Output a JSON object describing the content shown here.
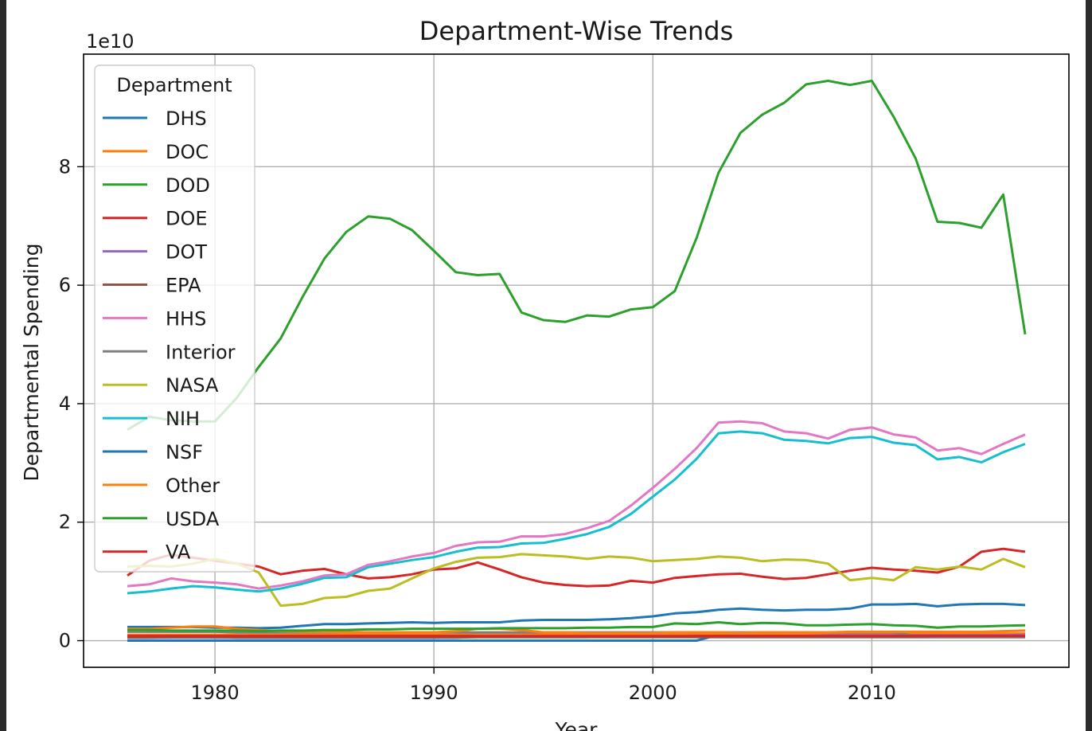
{
  "chart_data": {
    "type": "line",
    "title": "Department-Wise Trends",
    "xlabel": "Year",
    "ylabel": "Departmental Spending",
    "y_offset_label": "1e10",
    "xlim": [
      1974,
      2019
    ],
    "ylim": [
      -0.45,
      9.9
    ],
    "x_ticks": [
      1980,
      1990,
      2000,
      2010
    ],
    "x_tick_labels": [
      "1980",
      "1990",
      "2000",
      "2010"
    ],
    "y_ticks": [
      0,
      2,
      4,
      6,
      8
    ],
    "y_tick_labels": [
      "0",
      "2",
      "4",
      "6",
      "8"
    ],
    "grid": true,
    "legend_title": "Department",
    "legend_position": "upper-left",
    "x": [
      1976,
      1977,
      1978,
      1979,
      1980,
      1981,
      1982,
      1983,
      1984,
      1985,
      1986,
      1987,
      1988,
      1989,
      1990,
      1991,
      1992,
      1993,
      1994,
      1995,
      1996,
      1997,
      1998,
      1999,
      2000,
      2001,
      2002,
      2003,
      2004,
      2005,
      2006,
      2007,
      2008,
      2009,
      2010,
      2011,
      2012,
      2013,
      2014,
      2015,
      2016,
      2017
    ],
    "series": [
      {
        "name": "DHS",
        "color": "#1f77b4",
        "values": [
          0,
          0,
          0,
          0,
          0,
          0,
          0,
          0,
          0,
          0,
          0,
          0,
          0,
          0,
          0,
          0,
          0,
          0,
          0,
          0,
          0,
          0,
          0,
          0,
          0,
          0,
          0,
          0.1,
          0.12,
          0.12,
          0.11,
          0.1,
          0.1,
          0.1,
          0.1,
          0.1,
          0.1,
          0.1,
          0.1,
          0.1,
          0.1,
          0.1
        ]
      },
      {
        "name": "DOC",
        "color": "#ff7f0e",
        "values": [
          0.1,
          0.1,
          0.1,
          0.1,
          0.1,
          0.1,
          0.1,
          0.1,
          0.1,
          0.1,
          0.1,
          0.1,
          0.1,
          0.1,
          0.1,
          0.1,
          0.12,
          0.12,
          0.12,
          0.12,
          0.12,
          0.12,
          0.12,
          0.12,
          0.12,
          0.12,
          0.12,
          0.12,
          0.12,
          0.12,
          0.12,
          0.12,
          0.12,
          0.12,
          0.12,
          0.12,
          0.12,
          0.12,
          0.12,
          0.12,
          0.12,
          0.12
        ]
      },
      {
        "name": "DOD",
        "color": "#2ca02c",
        "values": [
          3.56,
          3.78,
          3.72,
          3.7,
          3.7,
          4.1,
          4.62,
          5.1,
          5.8,
          6.45,
          6.9,
          7.16,
          7.12,
          6.93,
          6.58,
          6.22,
          6.17,
          6.19,
          5.54,
          5.41,
          5.38,
          5.49,
          5.47,
          5.59,
          5.63,
          5.9,
          6.8,
          7.9,
          8.57,
          8.88,
          9.08,
          9.39,
          9.45,
          9.38,
          9.45,
          8.84,
          8.14,
          7.07,
          7.05,
          6.97,
          7.53,
          5.17
        ]
      },
      {
        "name": "DOE",
        "color": "#d62728",
        "values": [
          1.1,
          1.35,
          1.45,
          1.4,
          1.35,
          1.3,
          1.25,
          1.12,
          1.18,
          1.21,
          1.12,
          1.05,
          1.07,
          1.12,
          1.2,
          1.22,
          1.32,
          1.2,
          1.07,
          0.98,
          0.94,
          0.92,
          0.93,
          1.01,
          0.98,
          1.06,
          1.09,
          1.12,
          1.13,
          1.08,
          1.04,
          1.06,
          1.12,
          1.18,
          1.23,
          1.2,
          1.18,
          1.15,
          1.25,
          1.5,
          1.55,
          1.5
        ]
      },
      {
        "name": "DOT",
        "color": "#9467bd",
        "values": [
          0.05,
          0.05,
          0.05,
          0.05,
          0.05,
          0.05,
          0.05,
          0.05,
          0.05,
          0.05,
          0.05,
          0.05,
          0.05,
          0.05,
          0.05,
          0.06,
          0.06,
          0.06,
          0.06,
          0.06,
          0.06,
          0.06,
          0.07,
          0.07,
          0.07,
          0.07,
          0.08,
          0.08,
          0.08,
          0.08,
          0.08,
          0.08,
          0.09,
          0.09,
          0.09,
          0.09,
          0.09,
          0.09,
          0.09,
          0.09,
          0.09,
          0.1
        ]
      },
      {
        "name": "EPA",
        "color": "#8c564b",
        "values": [
          0.05,
          0.05,
          0.06,
          0.06,
          0.06,
          0.05,
          0.05,
          0.05,
          0.05,
          0.05,
          0.05,
          0.05,
          0.05,
          0.05,
          0.05,
          0.05,
          0.06,
          0.06,
          0.06,
          0.06,
          0.06,
          0.06,
          0.06,
          0.06,
          0.06,
          0.06,
          0.06,
          0.06,
          0.06,
          0.06,
          0.06,
          0.06,
          0.06,
          0.06,
          0.06,
          0.06,
          0.06,
          0.06,
          0.06,
          0.06,
          0.06,
          0.06
        ]
      },
      {
        "name": "HHS",
        "color": "#e377c2",
        "values": [
          0.92,
          0.95,
          1.05,
          1.0,
          0.98,
          0.95,
          0.88,
          0.93,
          1.0,
          1.1,
          1.12,
          1.28,
          1.34,
          1.42,
          1.48,
          1.6,
          1.66,
          1.67,
          1.76,
          1.76,
          1.8,
          1.9,
          2.02,
          2.28,
          2.58,
          2.9,
          3.25,
          3.68,
          3.7,
          3.67,
          3.53,
          3.5,
          3.41,
          3.56,
          3.6,
          3.48,
          3.43,
          3.21,
          3.25,
          3.15,
          3.32,
          3.48
        ]
      },
      {
        "name": "Interior",
        "color": "#7f7f7f",
        "values": [
          0.15,
          0.15,
          0.15,
          0.15,
          0.15,
          0.14,
          0.14,
          0.14,
          0.14,
          0.14,
          0.14,
          0.14,
          0.14,
          0.14,
          0.14,
          0.14,
          0.14,
          0.14,
          0.14,
          0.14,
          0.14,
          0.14,
          0.14,
          0.14,
          0.14,
          0.14,
          0.14,
          0.14,
          0.14,
          0.14,
          0.14,
          0.14,
          0.14,
          0.14,
          0.14,
          0.14,
          0.08,
          0.07,
          0.07,
          0.07,
          0.07,
          0.07
        ]
      },
      {
        "name": "NASA",
        "color": "#bcbd22",
        "values": [
          1.25,
          1.26,
          1.25,
          1.3,
          1.38,
          1.3,
          1.15,
          0.59,
          0.62,
          0.72,
          0.74,
          0.84,
          0.88,
          1.05,
          1.22,
          1.33,
          1.4,
          1.41,
          1.46,
          1.44,
          1.42,
          1.38,
          1.42,
          1.4,
          1.34,
          1.36,
          1.38,
          1.42,
          1.4,
          1.34,
          1.37,
          1.36,
          1.3,
          1.02,
          1.06,
          1.02,
          1.24,
          1.2,
          1.25,
          1.2,
          1.38,
          1.24
        ]
      },
      {
        "name": "NIH",
        "color": "#17becf",
        "values": [
          0.8,
          0.83,
          0.88,
          0.92,
          0.9,
          0.86,
          0.83,
          0.88,
          0.96,
          1.06,
          1.07,
          1.24,
          1.3,
          1.36,
          1.41,
          1.5,
          1.57,
          1.58,
          1.64,
          1.65,
          1.72,
          1.8,
          1.92,
          2.14,
          2.43,
          2.72,
          3.07,
          3.5,
          3.53,
          3.5,
          3.39,
          3.37,
          3.33,
          3.42,
          3.44,
          3.34,
          3.3,
          3.06,
          3.1,
          3.01,
          3.18,
          3.32
        ]
      },
      {
        "name": "NSF",
        "color": "#1f77b4",
        "values": [
          0.23,
          0.23,
          0.23,
          0.23,
          0.22,
          0.22,
          0.21,
          0.22,
          0.25,
          0.28,
          0.28,
          0.29,
          0.3,
          0.31,
          0.3,
          0.31,
          0.31,
          0.31,
          0.34,
          0.35,
          0.35,
          0.35,
          0.36,
          0.38,
          0.41,
          0.46,
          0.48,
          0.52,
          0.54,
          0.52,
          0.51,
          0.52,
          0.52,
          0.54,
          0.61,
          0.61,
          0.62,
          0.58,
          0.61,
          0.62,
          0.62,
          0.6
        ]
      },
      {
        "name": "Other",
        "color": "#ff7f0e",
        "values": [
          0.2,
          0.2,
          0.22,
          0.24,
          0.24,
          0.2,
          0.18,
          0.16,
          0.15,
          0.15,
          0.14,
          0.14,
          0.14,
          0.14,
          0.14,
          0.16,
          0.2,
          0.2,
          0.18,
          0.14,
          0.14,
          0.13,
          0.13,
          0.13,
          0.13,
          0.14,
          0.14,
          0.14,
          0.13,
          0.14,
          0.14,
          0.14,
          0.14,
          0.15,
          0.15,
          0.15,
          0.15,
          0.15,
          0.15,
          0.15,
          0.16,
          0.17
        ]
      },
      {
        "name": "USDA",
        "color": "#2ca02c",
        "values": [
          0.18,
          0.18,
          0.17,
          0.17,
          0.17,
          0.17,
          0.16,
          0.17,
          0.17,
          0.18,
          0.18,
          0.19,
          0.19,
          0.2,
          0.2,
          0.2,
          0.2,
          0.21,
          0.21,
          0.21,
          0.21,
          0.22,
          0.22,
          0.23,
          0.23,
          0.29,
          0.28,
          0.31,
          0.28,
          0.3,
          0.29,
          0.26,
          0.26,
          0.27,
          0.28,
          0.26,
          0.25,
          0.22,
          0.24,
          0.24,
          0.25,
          0.26
        ]
      },
      {
        "name": "VA",
        "color": "#d62728",
        "values": [
          0.08,
          0.08,
          0.08,
          0.08,
          0.08,
          0.08,
          0.08,
          0.08,
          0.08,
          0.08,
          0.08,
          0.08,
          0.08,
          0.08,
          0.08,
          0.08,
          0.08,
          0.08,
          0.08,
          0.08,
          0.08,
          0.08,
          0.08,
          0.08,
          0.08,
          0.08,
          0.08,
          0.08,
          0.08,
          0.08,
          0.08,
          0.08,
          0.08,
          0.08,
          0.08,
          0.08,
          0.08,
          0.08,
          0.08,
          0.08,
          0.08,
          0.08
        ]
      }
    ]
  }
}
